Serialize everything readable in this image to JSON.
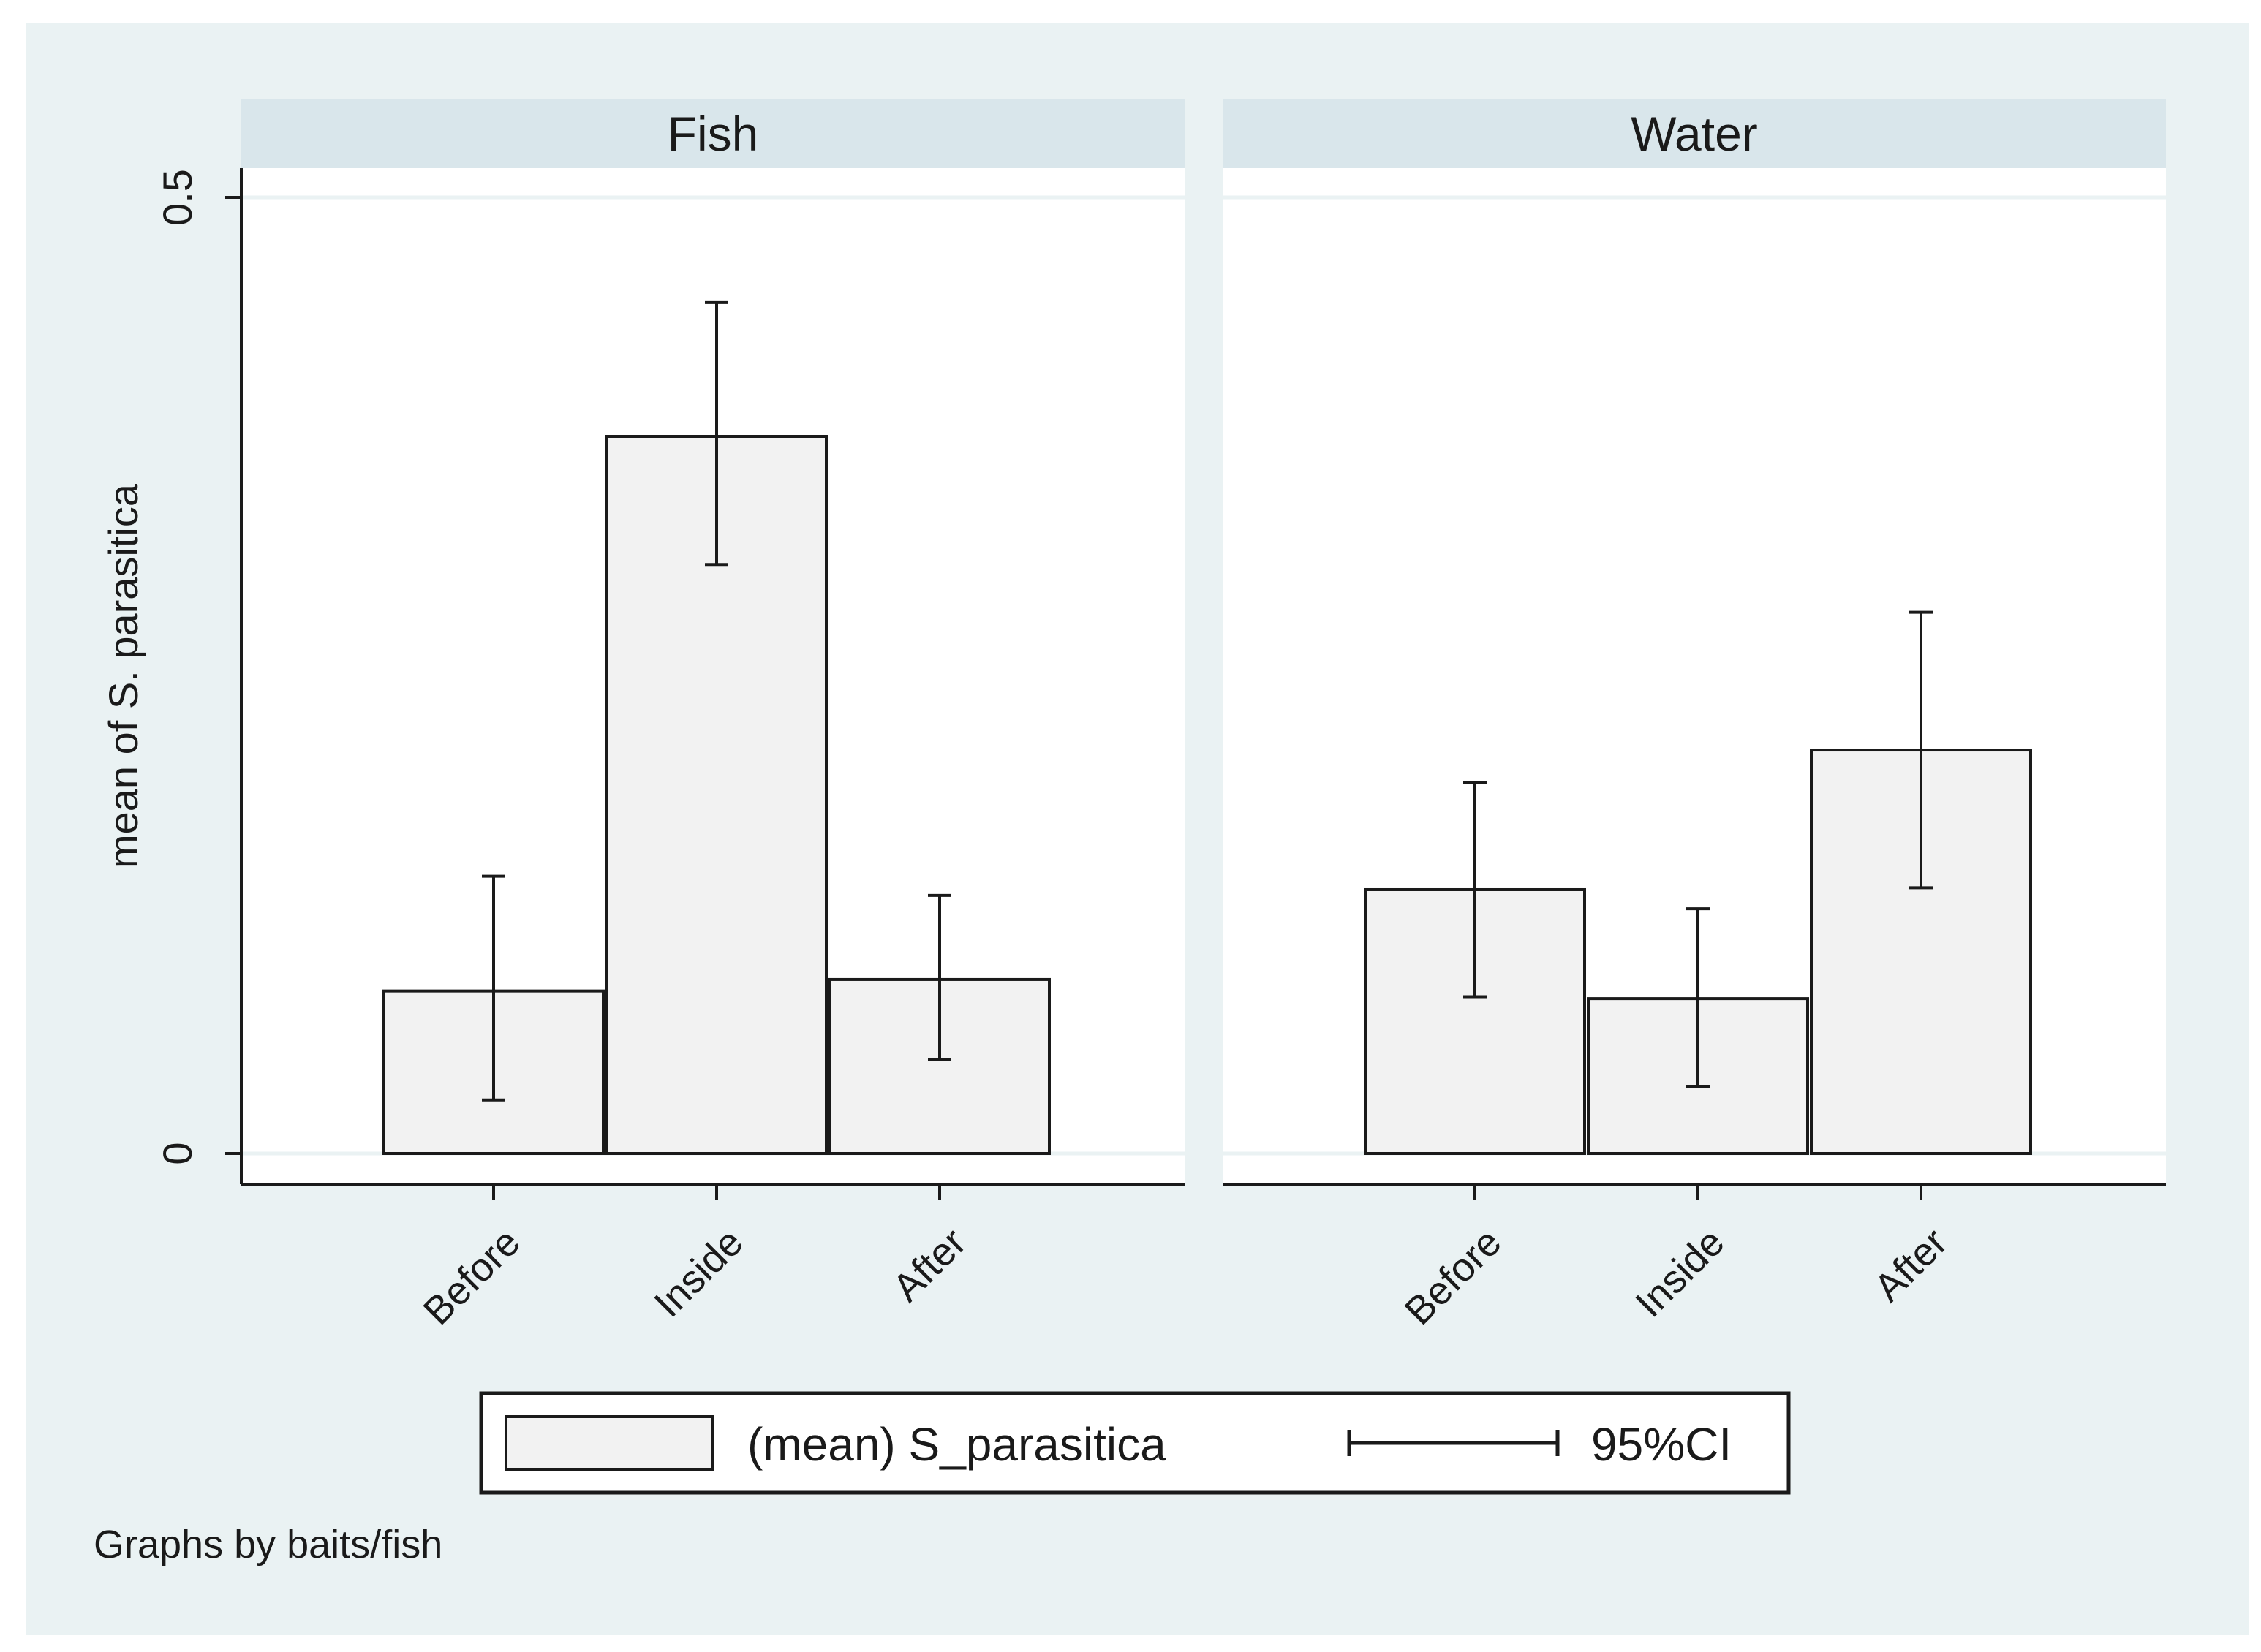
{
  "colors": {
    "outer_background": "#eaf2f3",
    "panel_header": "#d9e6eb",
    "plot_background": "#ffffff",
    "bar_fill": "#f2f2f2",
    "bar_stroke": "#1a1a1a",
    "grid": "#eaf2f3"
  },
  "chart_data": {
    "type": "bar",
    "ylabel": "mean of S. parasitica",
    "ylim": [
      0,
      0.5
    ],
    "yticks": [
      {
        "value": 0,
        "label": "0"
      },
      {
        "value": 0.5,
        "label": "0.5"
      }
    ],
    "categories": [
      "Before",
      "Inside",
      "After"
    ],
    "panels": [
      {
        "title": "Fish",
        "values": [
          0.085,
          0.375,
          0.091
        ],
        "ci_low": [
          0.028,
          0.308,
          0.049
        ],
        "ci_high": [
          0.145,
          0.445,
          0.135
        ]
      },
      {
        "title": "Water",
        "values": [
          0.138,
          0.081,
          0.211
        ],
        "ci_low": [
          0.082,
          0.035,
          0.139
        ],
        "ci_high": [
          0.194,
          0.128,
          0.283
        ]
      }
    ],
    "legend": {
      "position": "bottom",
      "bar_label": "(mean) S_parasitica",
      "ci_label": "95%CI"
    },
    "note": "Graphs by baits/fish"
  }
}
